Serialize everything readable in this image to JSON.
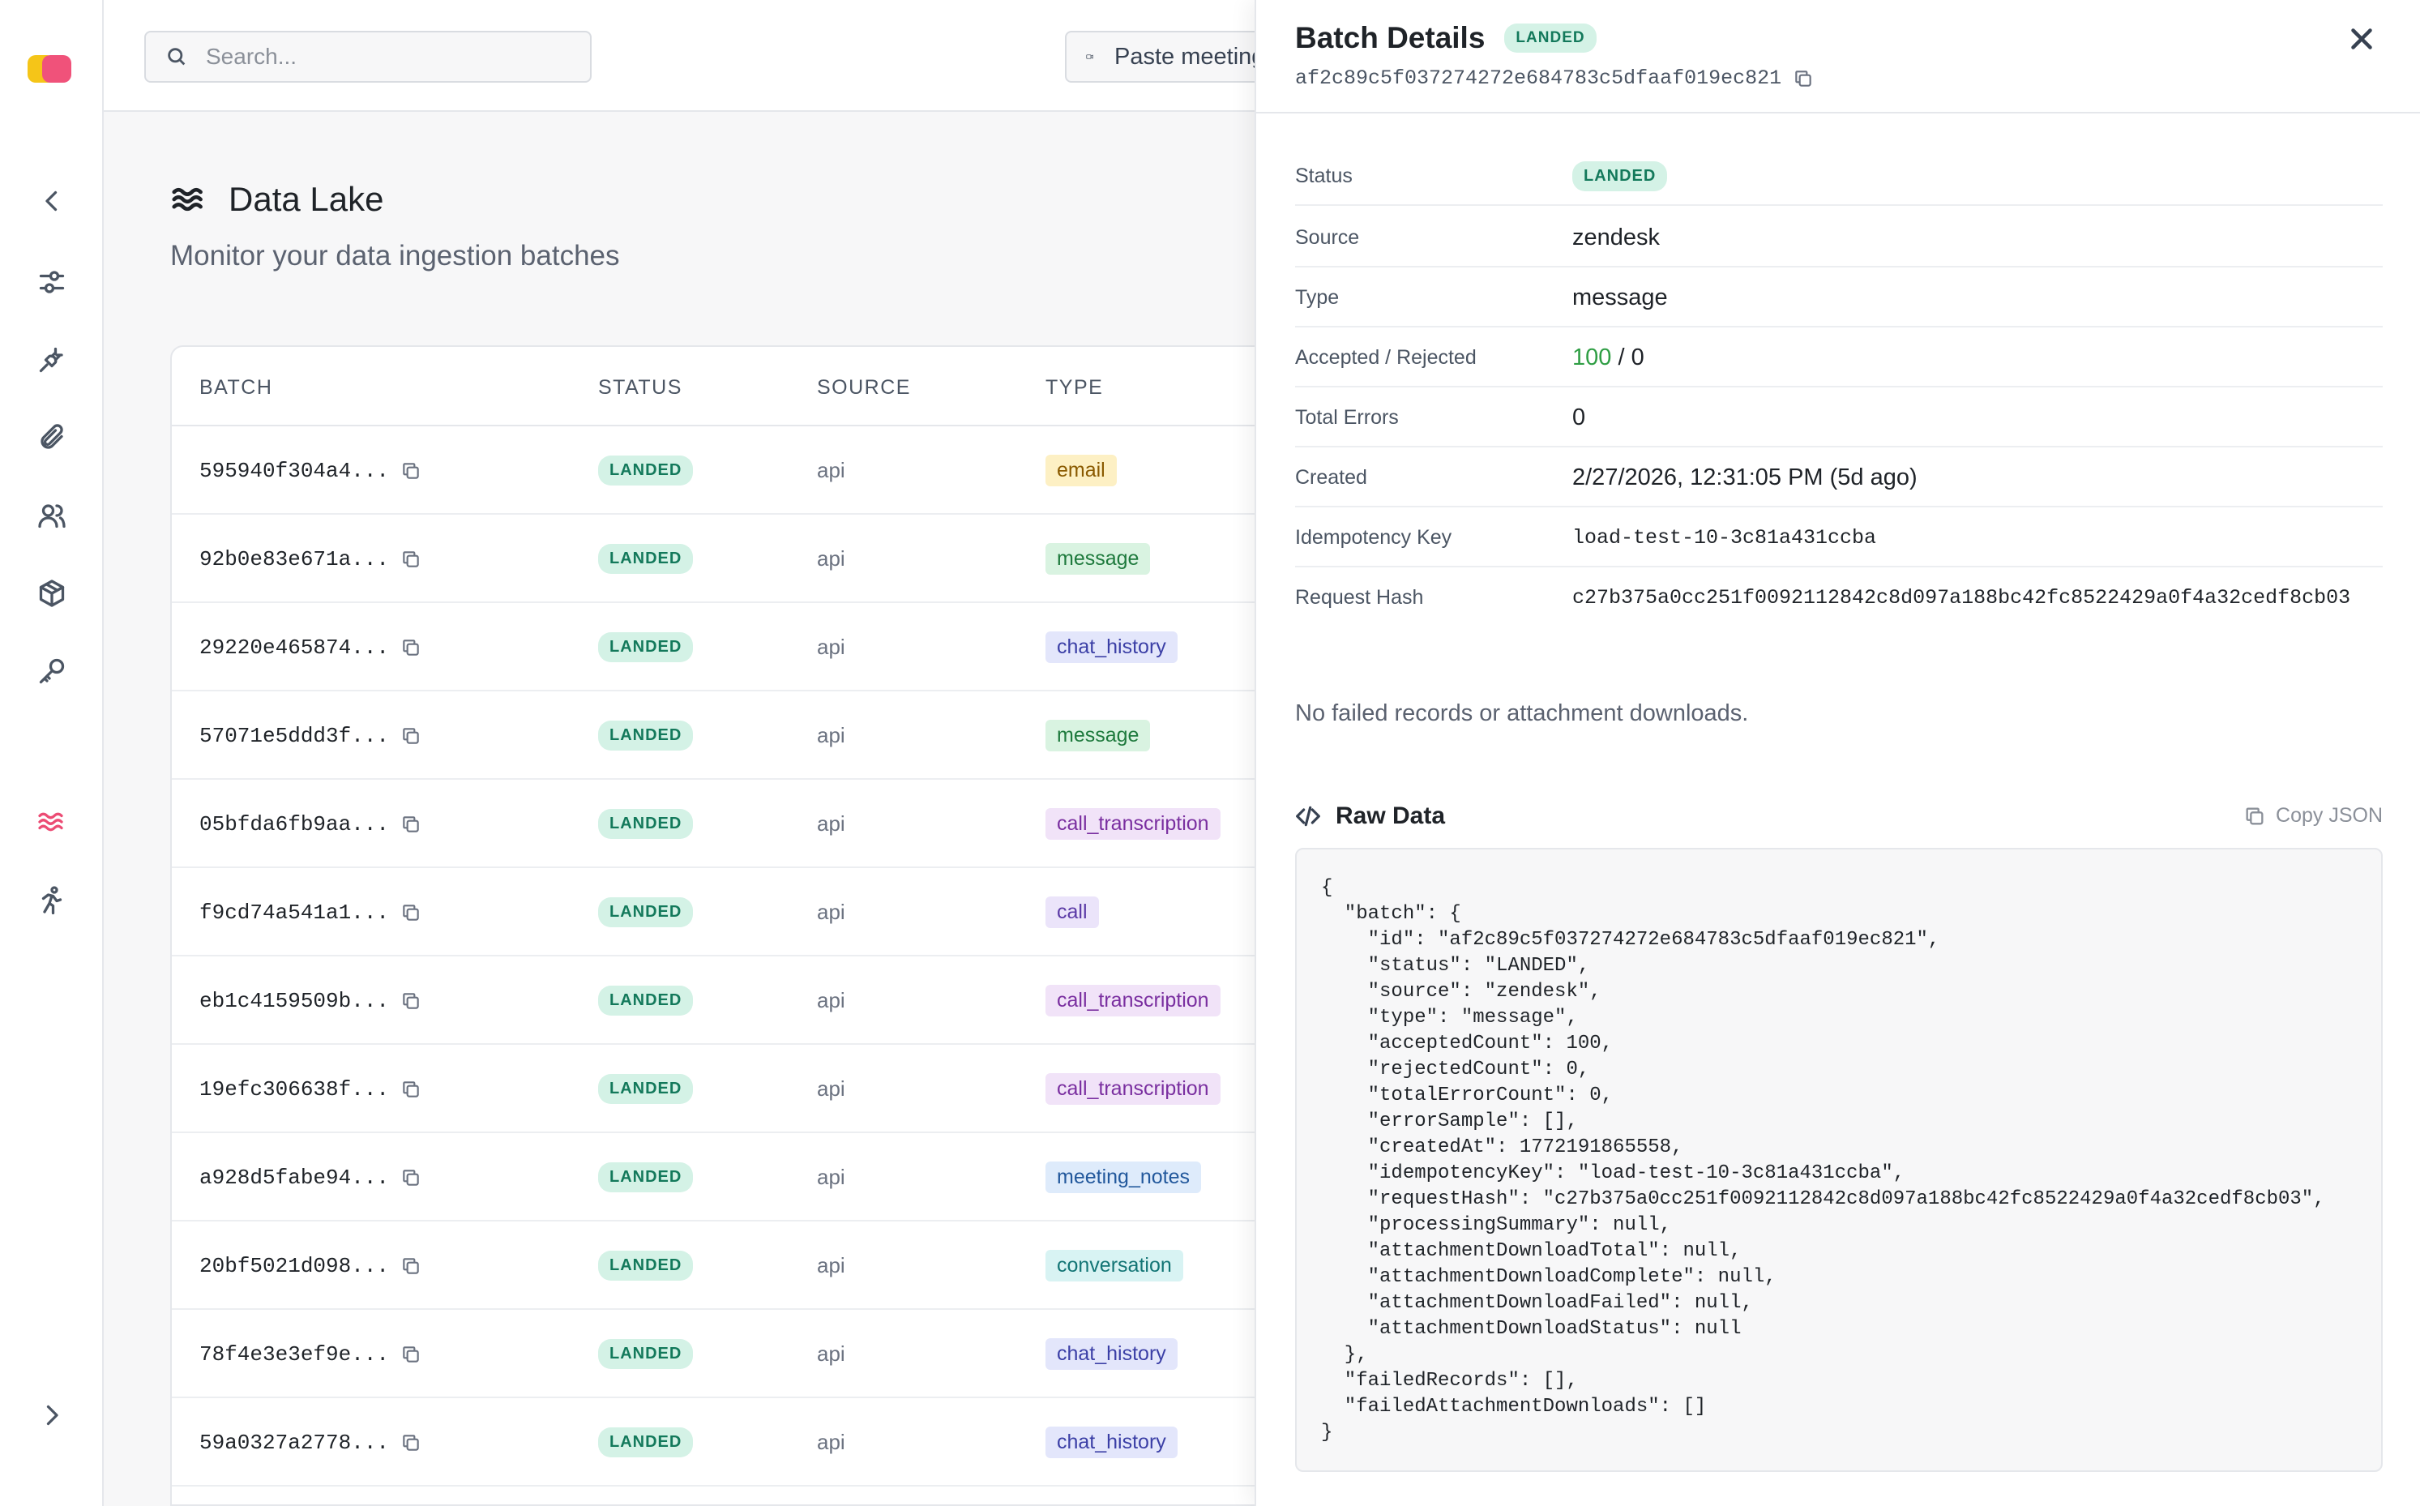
{
  "search": {
    "placeholder": "Search..."
  },
  "topbar": {
    "paste_label": "Paste meeting link"
  },
  "page": {
    "title": "Data Lake",
    "subtitle": "Monitor your data ingestion batches"
  },
  "table": {
    "columns": [
      "BATCH",
      "STATUS",
      "SOURCE",
      "TYPE"
    ],
    "rows": [
      {
        "batch": "595940f304a4...",
        "status": "LANDED",
        "source": "api",
        "type": "email"
      },
      {
        "batch": "92b0e83e671a...",
        "status": "LANDED",
        "source": "api",
        "type": "message"
      },
      {
        "batch": "29220e465874...",
        "status": "LANDED",
        "source": "api",
        "type": "chat_history"
      },
      {
        "batch": "57071e5ddd3f...",
        "status": "LANDED",
        "source": "api",
        "type": "message"
      },
      {
        "batch": "05bfda6fb9aa...",
        "status": "LANDED",
        "source": "api",
        "type": "call_transcription"
      },
      {
        "batch": "f9cd74a541a1...",
        "status": "LANDED",
        "source": "api",
        "type": "call"
      },
      {
        "batch": "eb1c4159509b...",
        "status": "LANDED",
        "source": "api",
        "type": "call_transcription"
      },
      {
        "batch": "19efc306638f...",
        "status": "LANDED",
        "source": "api",
        "type": "call_transcription"
      },
      {
        "batch": "a928d5fabe94...",
        "status": "LANDED",
        "source": "api",
        "type": "meeting_notes"
      },
      {
        "batch": "20bf5021d098...",
        "status": "LANDED",
        "source": "api",
        "type": "conversation"
      },
      {
        "batch": "78f4e3e3ef9e...",
        "status": "LANDED",
        "source": "api",
        "type": "chat_history"
      },
      {
        "batch": "59a0327a2778...",
        "status": "LANDED",
        "source": "api",
        "type": "chat_history"
      }
    ]
  },
  "type_colors": {
    "email": {
      "bg": "#fdf0c4",
      "fg": "#8a5a00"
    },
    "message": {
      "bg": "#d9f3e1",
      "fg": "#1e7a3d"
    },
    "chat_history": {
      "bg": "#e3e6fb",
      "fg": "#3b3fa6"
    },
    "call_transcription": {
      "bg": "#f1e3f8",
      "fg": "#7a2fa0"
    },
    "call": {
      "bg": "#ebe4fa",
      "fg": "#5b3aa6"
    },
    "meeting_notes": {
      "bg": "#deebfb",
      "fg": "#22589c"
    },
    "conversation": {
      "bg": "#d8f3f3",
      "fg": "#137575"
    }
  },
  "drawer": {
    "title": "Batch Details",
    "status_badge": "LANDED",
    "batch_id": "af2c89c5f037274272e684783c5dfaaf019ec821",
    "fields": {
      "status": {
        "label": "Status",
        "value": "LANDED"
      },
      "source": {
        "label": "Source",
        "value": "zendesk"
      },
      "type": {
        "label": "Type",
        "value": "message"
      },
      "accepted_rejected": {
        "label": "Accepted / Rejected",
        "accepted": "100",
        "separator": " / ",
        "rejected": "0"
      },
      "total_errors": {
        "label": "Total Errors",
        "value": "0"
      },
      "created": {
        "label": "Created",
        "value": "2/27/2026, 12:31:05 PM (5d ago)"
      },
      "idempotency_key": {
        "label": "Idempotency Key",
        "value": "load-test-10-3c81a431ccba"
      },
      "request_hash": {
        "label": "Request Hash",
        "value": "c27b375a0cc251f0092112842c8d097a188bc42fc8522429a0f4a32cedf8cb03"
      }
    },
    "no_failed_message": "No failed records or attachment downloads.",
    "raw_data_title": "Raw Data",
    "copy_json_label": "Copy JSON",
    "raw_json": "{\n  \"batch\": {\n    \"id\": \"af2c89c5f037274272e684783c5dfaaf019ec821\",\n    \"status\": \"LANDED\",\n    \"source\": \"zendesk\",\n    \"type\": \"message\",\n    \"acceptedCount\": 100,\n    \"rejectedCount\": 0,\n    \"totalErrorCount\": 0,\n    \"errorSample\": [],\n    \"createdAt\": 1772191865558,\n    \"idempotencyKey\": \"load-test-10-3c81a431ccba\",\n    \"requestHash\": \"c27b375a0cc251f0092112842c8d097a188bc42fc8522429a0f4a32cedf8cb03\",\n    \"processingSummary\": null,\n    \"attachmentDownloadTotal\": null,\n    \"attachmentDownloadComplete\": null,\n    \"attachmentDownloadFailed\": null,\n    \"attachmentDownloadStatus\": null\n  },\n  \"failedRecords\": [],\n  \"failedAttachmentDownloads\": []\n}"
  },
  "rail": {
    "icons": [
      "collapse-left-icon",
      "sliders-icon",
      "plug-icon",
      "paperclip-icon",
      "users-icon",
      "package-icon",
      "key-icon",
      "waves-icon",
      "runner-icon",
      "expand-right-icon"
    ],
    "active_icon": "waves-icon",
    "accent": "#ec4c74"
  }
}
